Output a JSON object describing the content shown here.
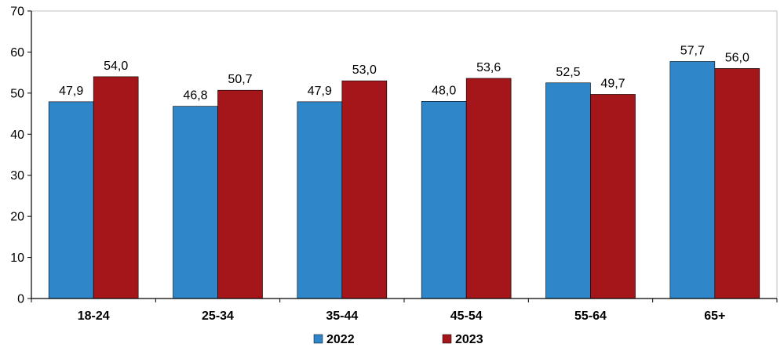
{
  "chart_data": {
    "type": "bar",
    "categories": [
      "18-24",
      "25-34",
      "35-44",
      "45-54",
      "55-64",
      "65+"
    ],
    "series": [
      {
        "name": "2022",
        "color": "#2f86c8",
        "values": [
          47.9,
          46.8,
          47.9,
          48.0,
          52.5,
          57.7
        ],
        "labels": [
          "47,9",
          "46,8",
          "47,9",
          "48,0",
          "52,5",
          "57,7"
        ]
      },
      {
        "name": "2023",
        "color": "#a4161a",
        "values": [
          54.0,
          50.7,
          53.0,
          53.6,
          49.7,
          56.0
        ],
        "labels": [
          "54,0",
          "50,7",
          "53,0",
          "53,6",
          "49,7",
          "56,0"
        ]
      }
    ],
    "ylim": [
      0,
      70
    ],
    "yticks": [
      0,
      10,
      20,
      30,
      40,
      50,
      60,
      70
    ],
    "grid": false,
    "legend_position": "bottom-center",
    "title": "",
    "xlabel": "",
    "ylabel": ""
  }
}
